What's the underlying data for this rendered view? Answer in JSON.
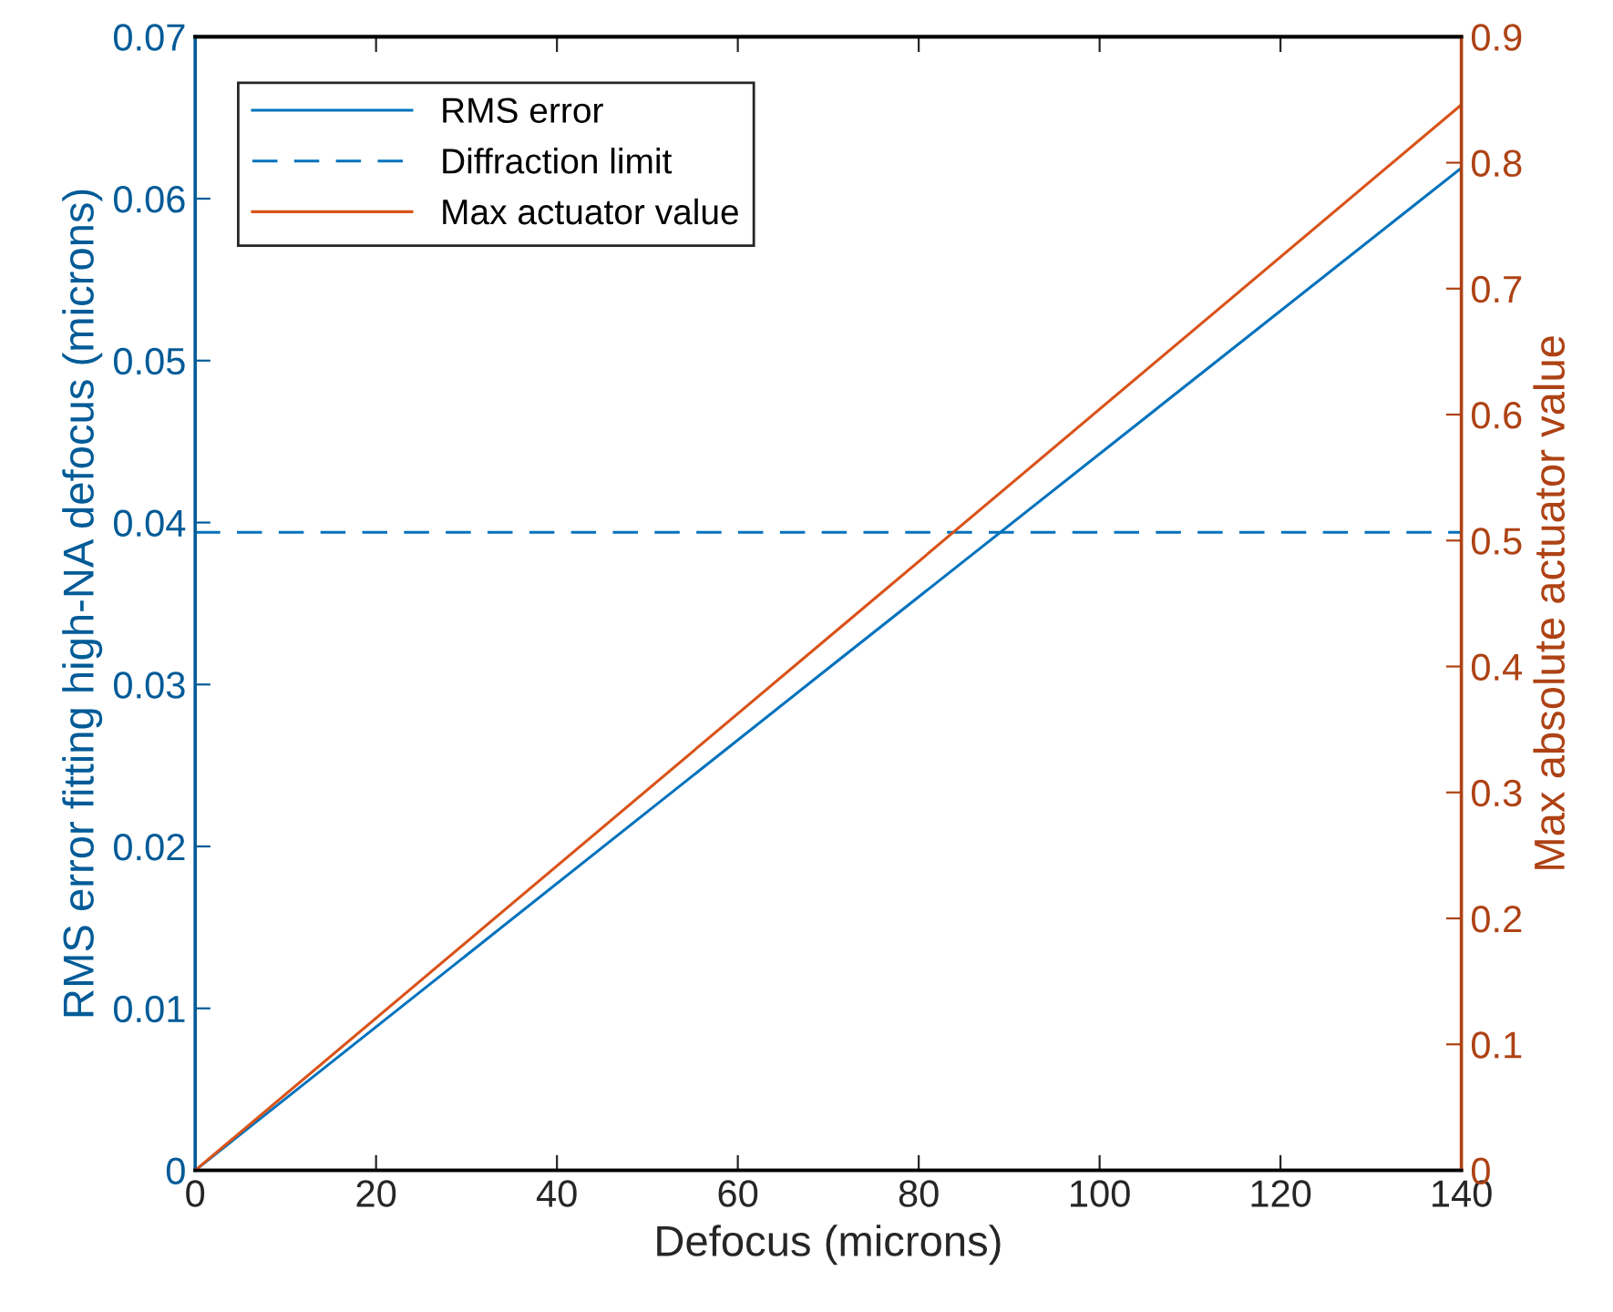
{
  "chart_data": {
    "type": "line",
    "xlabel": "Defocus (microns)",
    "ylabel": "RMS error fitting high-NA defocus (microns)",
    "y2label": "Max absolute actuator value",
    "xlim": [
      0,
      140
    ],
    "xticks": [
      0,
      20,
      40,
      60,
      80,
      100,
      120,
      140
    ],
    "ylim": [
      0,
      0.07
    ],
    "yticks": [
      0,
      0.01,
      0.02,
      0.03,
      0.04,
      0.05,
      0.06,
      0.07
    ],
    "y2lim": [
      0,
      0.9
    ],
    "y2ticks": [
      0,
      0.1,
      0.2,
      0.3,
      0.4,
      0.5,
      0.6,
      0.7,
      0.8,
      0.9
    ],
    "grid": false,
    "legend": "top left",
    "marker": "none",
    "series": [
      {
        "name": "RMS error",
        "color": "#0072bd",
        "x": [
          0,
          70,
          140
        ],
        "values": [
          0,
          0.031,
          0.0619
        ],
        "line_style": "solid"
      },
      {
        "name": "Max actuator value",
        "color": "#d95319",
        "x": [
          0,
          70,
          140
        ],
        "values": [
          0,
          0.423,
          0.846
        ],
        "axis": "y2",
        "line_style": "solid"
      }
    ],
    "ref_lines": [
      {
        "axis": "y",
        "value": 0.0394,
        "label": "Diffraction limit",
        "color": "#0072bd",
        "line_style": "dashed"
      }
    ]
  }
}
